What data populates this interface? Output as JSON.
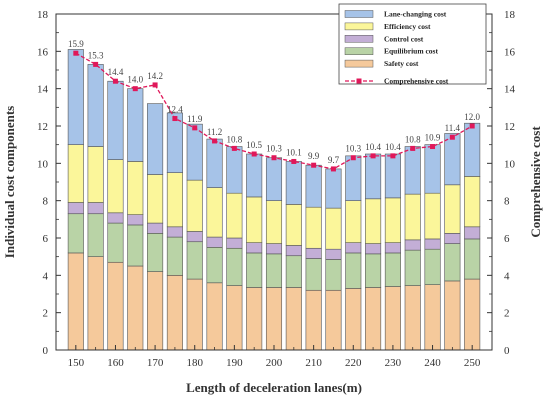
{
  "chart_data": {
    "type": "bar",
    "subtype": "stacked-bar-with-line",
    "x": [
      150,
      155,
      160,
      165,
      170,
      175,
      180,
      185,
      190,
      195,
      200,
      205,
      210,
      215,
      220,
      225,
      230,
      235,
      240,
      245,
      250
    ],
    "x_ticks": [
      "150",
      "160",
      "170",
      "180",
      "190",
      "200",
      "210",
      "220",
      "230",
      "240",
      "250"
    ],
    "xlabel": "Length of deceleration lanes(m)",
    "ylabel": "Individual cost components",
    "y2label": "Comprehensive cost",
    "ylim": [
      0,
      18
    ],
    "y2lim": [
      0,
      18
    ],
    "y_ticks": [
      "0",
      "2",
      "4",
      "6",
      "8",
      "10",
      "12",
      "14",
      "16",
      "18"
    ],
    "grid": false,
    "legend_position": "top-right",
    "series": [
      {
        "name": "Safety cost",
        "color": "#f5c99b",
        "values": [
          5.2,
          5.0,
          4.7,
          4.5,
          4.2,
          4.0,
          3.8,
          3.6,
          3.45,
          3.35,
          3.35,
          3.35,
          3.2,
          3.2,
          3.3,
          3.35,
          3.4,
          3.45,
          3.5,
          3.7,
          3.8
        ]
      },
      {
        "name": "Equilibrium cost",
        "color": "#b9d3a6",
        "values": [
          2.1,
          2.3,
          2.1,
          2.2,
          2.05,
          2.05,
          2.0,
          1.9,
          2.0,
          1.85,
          1.8,
          1.7,
          1.7,
          1.65,
          1.9,
          1.8,
          1.8,
          1.9,
          1.9,
          2.0,
          2.15
        ]
      },
      {
        "name": "Control cost",
        "color": "#c3aed6",
        "values": [
          0.6,
          0.6,
          0.55,
          0.55,
          0.55,
          0.55,
          0.55,
          0.55,
          0.55,
          0.55,
          0.55,
          0.55,
          0.55,
          0.55,
          0.55,
          0.55,
          0.55,
          0.55,
          0.55,
          0.55,
          0.65
        ]
      },
      {
        "name": "Efficiency cost",
        "color": "#fbf69a",
        "values": [
          3.1,
          3.0,
          2.85,
          2.85,
          2.6,
          2.9,
          2.75,
          2.65,
          2.4,
          2.45,
          2.3,
          2.2,
          2.2,
          2.2,
          2.25,
          2.4,
          2.4,
          2.45,
          2.45,
          2.6,
          2.7
        ]
      },
      {
        "name": "Lane-changing cost",
        "color": "#a6c3e8",
        "values": [
          5.1,
          4.4,
          4.2,
          3.9,
          3.8,
          3.2,
          3.0,
          2.6,
          2.5,
          2.3,
          2.3,
          2.3,
          2.25,
          2.1,
          2.4,
          2.4,
          2.35,
          2.55,
          2.6,
          2.75,
          2.85
        ]
      },
      {
        "name": "Comprehensive cost",
        "color": "#e0185a",
        "type": "line",
        "values": [
          15.9,
          15.3,
          14.4,
          14.0,
          14.2,
          12.4,
          11.9,
          11.2,
          10.8,
          10.5,
          10.3,
          10.1,
          9.9,
          9.7,
          10.3,
          10.4,
          10.4,
          10.8,
          10.9,
          11.4,
          12.0
        ],
        "labels": [
          "15.9",
          "15.3",
          "14.4",
          "14.0",
          "14.2",
          "12.4",
          "11.9",
          "11.2",
          "10.8",
          "10.5",
          "10.3",
          "10.1",
          "9.9",
          "9.7",
          "10.3",
          "10.4",
          "10.4",
          "10.8",
          "10.9",
          "11.4",
          "12.0"
        ]
      }
    ],
    "legend_order": [
      "Lane-changing cost",
      "Efficiency cost",
      "Control cost",
      "Equilibrium cost",
      "Safety cost",
      "Comprehensive cost"
    ]
  }
}
